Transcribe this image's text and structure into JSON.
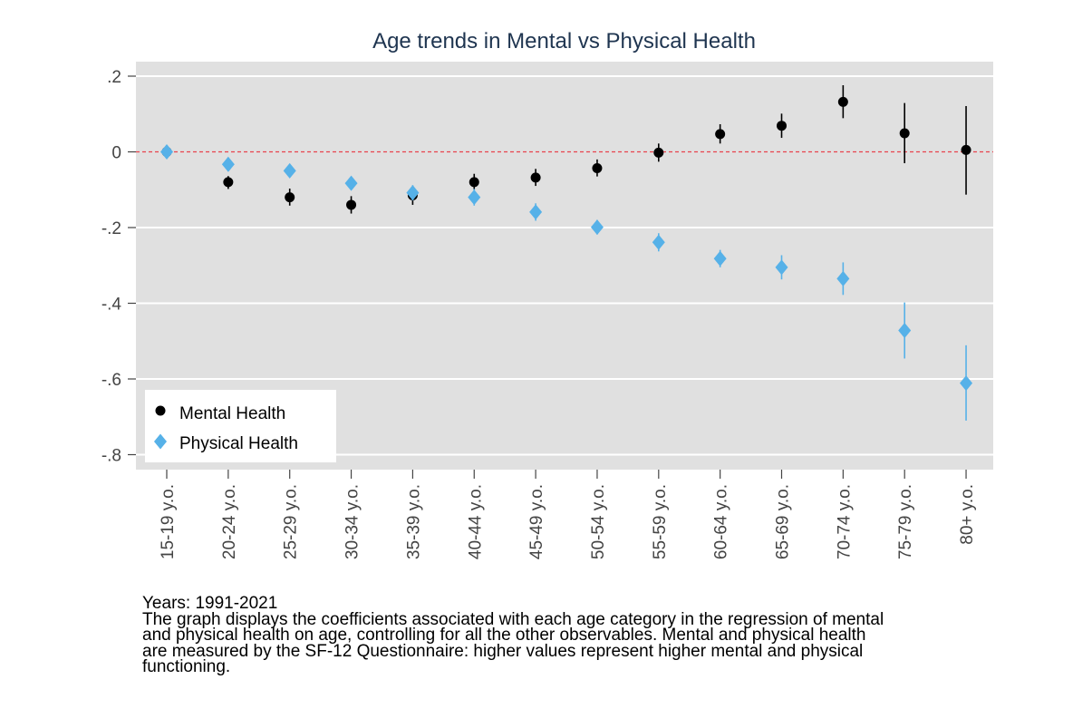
{
  "chart_data": {
    "type": "scatter",
    "title": "Age trends in Mental vs Physical Health",
    "xlabel": "",
    "ylabel": "",
    "categories": [
      "15-19 y.o.",
      "20-24 y.o.",
      "25-29 y.o.",
      "30-34 y.o.",
      "35-39 y.o.",
      "40-44 y.o.",
      "45-49 y.o.",
      "50-54 y.o.",
      "55-59 y.o.",
      "60-64 y.o.",
      "65-69 y.o.",
      "70-74 y.o.",
      "75-79 y.o.",
      "80+ y.o."
    ],
    "ylim": [
      -0.84,
      0.24
    ],
    "yticks": [
      0.2,
      0,
      -0.2,
      -0.4,
      -0.6,
      -0.8
    ],
    "ytick_labels": [
      ".2",
      "0",
      "-.2",
      "-.4",
      "-.6",
      "-.8"
    ],
    "reference_line": 0,
    "grid": true,
    "legend_position": "bottom-left",
    "series": [
      {
        "name": "Mental Health",
        "marker": "circle",
        "color": "#000000",
        "values": [
          0,
          -0.08,
          -0.12,
          -0.14,
          -0.115,
          -0.08,
          -0.068,
          -0.043,
          -0.002,
          0.047,
          0.069,
          0.132,
          0.049,
          0.005
        ],
        "ci_low": [
          0,
          -0.098,
          -0.142,
          -0.163,
          -0.14,
          -0.1,
          -0.09,
          -0.065,
          -0.026,
          0.022,
          0.037,
          0.089,
          -0.03,
          -0.113
        ],
        "ci_high": [
          0,
          -0.064,
          -0.097,
          -0.117,
          -0.09,
          -0.058,
          -0.045,
          -0.02,
          0.022,
          0.073,
          0.101,
          0.176,
          0.129,
          0.121
        ]
      },
      {
        "name": "Physical Health",
        "marker": "diamond",
        "color": "#56b1e8",
        "values": [
          0,
          -0.033,
          -0.05,
          -0.083,
          -0.108,
          -0.12,
          -0.159,
          -0.199,
          -0.239,
          -0.282,
          -0.305,
          -0.335,
          -0.472,
          -0.611
        ],
        "ci_low": [
          0,
          -0.045,
          -0.063,
          -0.1,
          -0.128,
          -0.142,
          -0.182,
          -0.218,
          -0.263,
          -0.305,
          -0.337,
          -0.378,
          -0.546,
          -0.71
        ],
        "ci_high": [
          0,
          -0.021,
          -0.037,
          -0.066,
          -0.088,
          -0.098,
          -0.136,
          -0.18,
          -0.215,
          -0.259,
          -0.273,
          -0.292,
          -0.398,
          -0.511
        ]
      }
    ]
  },
  "note": {
    "line1": "Years: 1991-2021",
    "line2": "The graph displays the coefficients associated with each age category in the regression of mental",
    "line3": "and physical health on age, controlling for all the other observables. Mental and physical health",
    "line4": "are measured by the SF-12 Questionnaire: higher values represent higher mental and physical",
    "line5": "functioning."
  }
}
